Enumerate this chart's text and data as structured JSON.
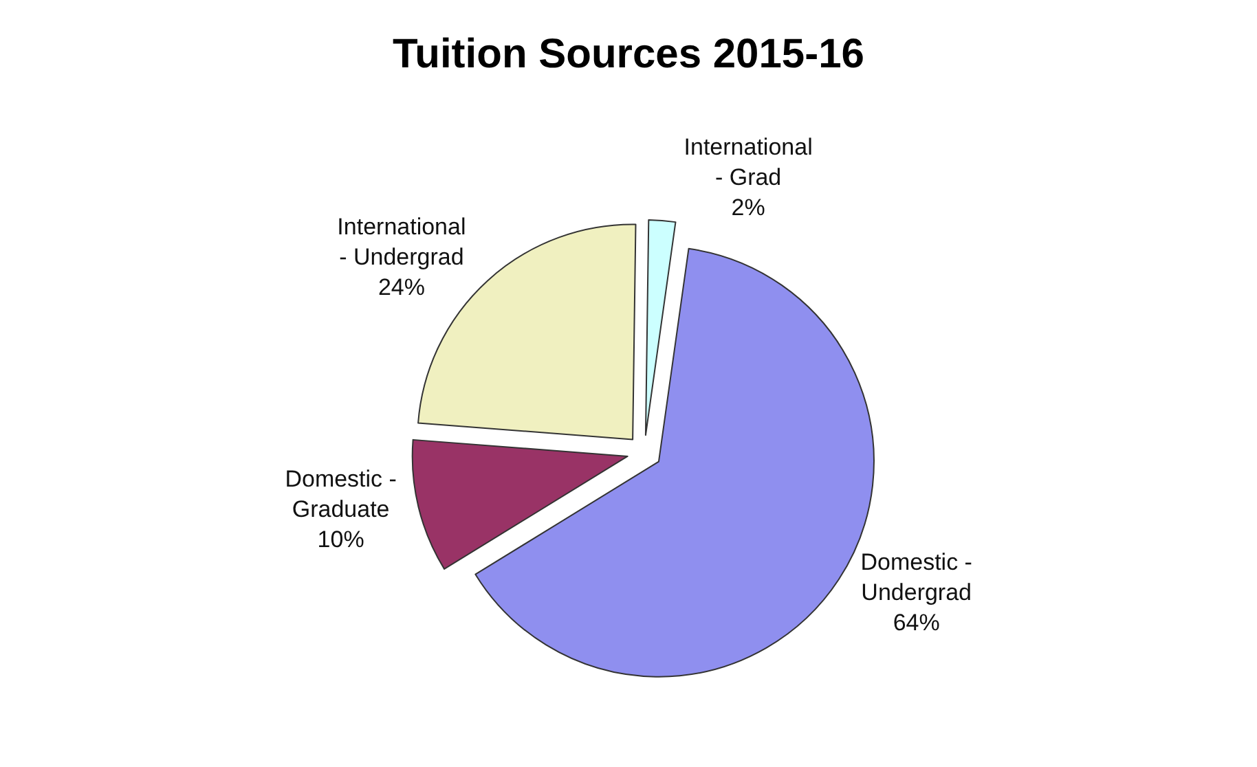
{
  "chart_data": {
    "type": "pie",
    "title": "Tuition Sources 2015-16",
    "categories": [
      "Domestic -\nUndergrad",
      "Domestic -\nGraduate",
      "International\n- Undergrad",
      "International\n- Grad"
    ],
    "values": [
      64,
      10,
      24,
      2
    ],
    "colors": [
      "#8f8fef",
      "#993366",
      "#f0f0c0",
      "#ccffff"
    ],
    "value_labels": [
      "64%",
      "10%",
      "24%",
      "2%"
    ],
    "legend": false
  }
}
